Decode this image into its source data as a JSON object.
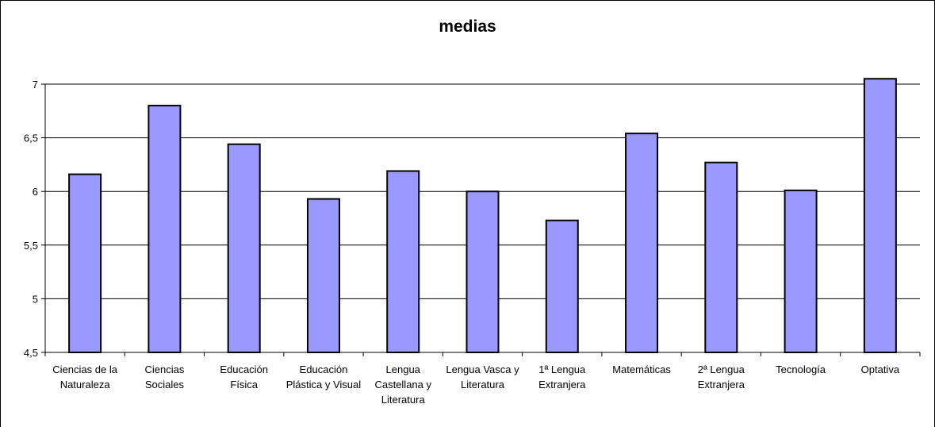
{
  "chart_data": {
    "type": "bar",
    "title": "medias",
    "xlabel": "",
    "ylabel": "",
    "ylim": [
      4.5,
      7
    ],
    "yticks": [
      "4,5",
      "5",
      "5,5",
      "6",
      "6,5",
      "7"
    ],
    "ytick_values": [
      4.5,
      5,
      5.5,
      6,
      6.5,
      7
    ],
    "grid": "horizontal",
    "legend": "none",
    "bar_color": "#9999ff",
    "categories": [
      [
        "Ciencias de la",
        "Naturaleza"
      ],
      [
        "Ciencias",
        "Sociales"
      ],
      [
        "Educación",
        "Física"
      ],
      [
        "Educación",
        "Plástica y Visual"
      ],
      [
        "Lengua",
        "Castellana y",
        "Literatura"
      ],
      [
        "Lengua Vasca y",
        "Literatura"
      ],
      [
        "1ª Lengua",
        "Extranjera"
      ],
      [
        "Matemáticas"
      ],
      [
        "2ª Lengua",
        "Extranjera"
      ],
      [
        "Tecnología"
      ],
      [
        "Optativa"
      ]
    ],
    "values": [
      6.16,
      6.8,
      6.44,
      5.93,
      6.19,
      6.0,
      5.73,
      6.54,
      6.27,
      6.01,
      7.05
    ]
  }
}
